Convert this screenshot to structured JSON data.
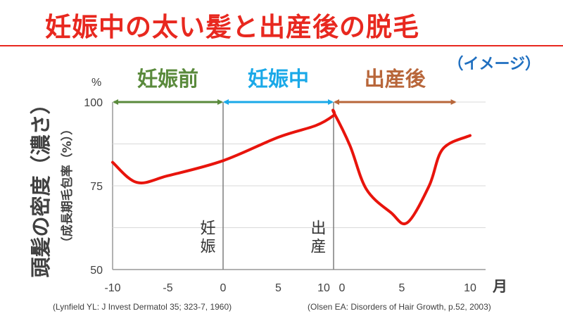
{
  "title": "妊娠中の太い髪と出産後の脱毛",
  "note": "（イメージ）",
  "chart_data": {
    "type": "line",
    "ylabel": "頭髪の密度（濃さ）",
    "ylabel_sub": "（成長期毛包率（%））",
    "yunit": "%",
    "xunit": "月",
    "ylim": [
      50,
      100
    ],
    "yticks": [
      50,
      75,
      100
    ],
    "segments": [
      {
        "xlim": [
          -10,
          10
        ],
        "xticks": [
          -10,
          -5,
          0,
          5,
          10
        ]
      },
      {
        "xlim": [
          0,
          10
        ],
        "xticks": [
          0,
          5,
          10
        ]
      }
    ],
    "events": [
      {
        "label": "妊娠",
        "segment": 0,
        "x": 0
      },
      {
        "label": "出産",
        "segment": 0,
        "x": 10
      }
    ],
    "phases": [
      {
        "label": "妊娠前",
        "color": "#5a8a3c",
        "from": [
          0,
          -10
        ],
        "to": [
          0,
          0
        ]
      },
      {
        "label": "妊娠中",
        "color": "#1aa9e8",
        "from": [
          0,
          0
        ],
        "to": [
          0,
          10
        ]
      },
      {
        "label": "出産後",
        "color": "#b8663a",
        "from": [
          1,
          0
        ],
        "to": [
          1,
          9
        ]
      }
    ],
    "series_color": "#e8140c",
    "grid": true,
    "points": [
      {
        "segment": 0,
        "x": -10,
        "y": 82
      },
      {
        "segment": 0,
        "x": -7.8,
        "y": 76
      },
      {
        "segment": 0,
        "x": -5,
        "y": 78
      },
      {
        "segment": 0,
        "x": 0,
        "y": 82.5
      },
      {
        "segment": 0,
        "x": 5,
        "y": 89.5
      },
      {
        "segment": 0,
        "x": 8.4,
        "y": 93
      },
      {
        "segment": 0,
        "x": 10,
        "y": 96
      },
      {
        "segment": 1,
        "x": 0,
        "y": 97
      },
      {
        "segment": 1,
        "x": 1.2,
        "y": 87
      },
      {
        "segment": 1,
        "x": 2.4,
        "y": 74
      },
      {
        "segment": 1,
        "x": 4.2,
        "y": 67
      },
      {
        "segment": 1,
        "x": 5.4,
        "y": 64
      },
      {
        "segment": 1,
        "x": 7,
        "y": 75
      },
      {
        "segment": 1,
        "x": 8,
        "y": 86
      },
      {
        "segment": 1,
        "x": 10,
        "y": 90
      }
    ]
  },
  "citations": {
    "left": "(Lynfield YL: J Invest Dermatol 35; 323-7, 1960)",
    "right": "(Olsen EA: Disorders of Hair Growth, p.52, 2003)"
  }
}
